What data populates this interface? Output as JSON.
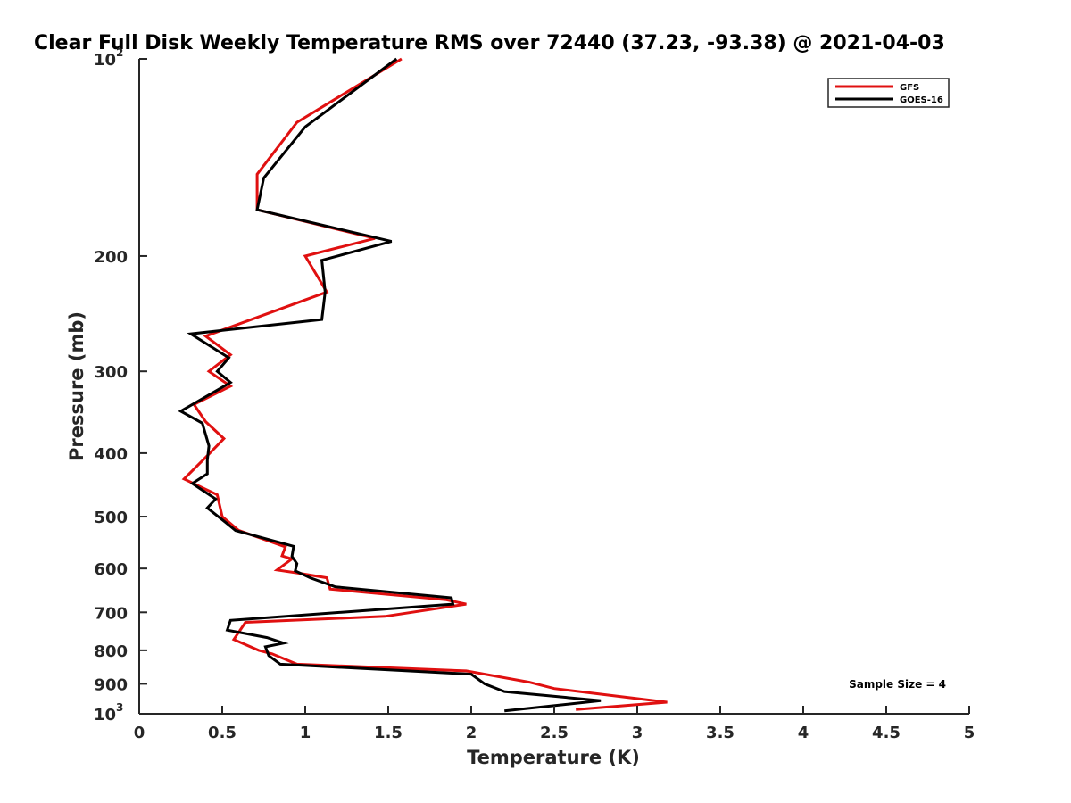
{
  "chart_data": {
    "type": "line",
    "title": "Clear Full Disk Weekly Temperature RMS over 72440 (37.23, -93.38) @ 2021-04-03",
    "xlabel": "Temperature (K)",
    "ylabel": "Pressure (mb)",
    "xlim": [
      0,
      5
    ],
    "ylim": [
      1000,
      100
    ],
    "y_scale": "log",
    "y_reversed": true,
    "x_ticks": [
      "0",
      "0.5",
      "1",
      "1.5",
      "2",
      "2.5",
      "3",
      "3.5",
      "4",
      "4.5",
      "5"
    ],
    "x_tick_values": [
      0,
      0.5,
      1,
      1.5,
      2,
      2.5,
      3,
      3.5,
      4,
      4.5,
      5
    ],
    "y_ticks": [
      {
        "value": 100,
        "base": "10",
        "exp": "2"
      },
      {
        "value": 200,
        "label": "200"
      },
      {
        "value": 300,
        "label": "300"
      },
      {
        "value": 400,
        "label": "400"
      },
      {
        "value": 500,
        "label": "500"
      },
      {
        "value": 600,
        "label": "600"
      },
      {
        "value": 700,
        "label": "700"
      },
      {
        "value": 800,
        "label": "800"
      },
      {
        "value": 900,
        "label": "900"
      },
      {
        "value": 1000,
        "base": "10",
        "exp": "3"
      }
    ],
    "grid": false,
    "legend_position": "top-right",
    "annotation": "Sample Size = 4",
    "series": [
      {
        "name": "GFS",
        "color": "#e01010",
        "points": [
          [
            1.58,
            100
          ],
          [
            0.95,
            125
          ],
          [
            0.71,
            150
          ],
          [
            0.71,
            170
          ],
          [
            1.42,
            188
          ],
          [
            1.0,
            200
          ],
          [
            1.13,
            227
          ],
          [
            0.4,
            265
          ],
          [
            0.55,
            283
          ],
          [
            0.42,
            300
          ],
          [
            0.55,
            316
          ],
          [
            0.33,
            337
          ],
          [
            0.4,
            358
          ],
          [
            0.51,
            380
          ],
          [
            0.4,
            406
          ],
          [
            0.27,
            438
          ],
          [
            0.47,
            463
          ],
          [
            0.5,
            500
          ],
          [
            0.6,
            525
          ],
          [
            0.88,
            556
          ],
          [
            0.86,
            574
          ],
          [
            0.92,
            580
          ],
          [
            0.83,
            603
          ],
          [
            0.96,
            610
          ],
          [
            1.13,
            620
          ],
          [
            1.15,
            645
          ],
          [
            1.85,
            670
          ],
          [
            1.97,
            680
          ],
          [
            1.48,
            710
          ],
          [
            0.64,
            725
          ],
          [
            0.57,
            770
          ],
          [
            0.72,
            800
          ],
          [
            0.8,
            810
          ],
          [
            0.95,
            840
          ],
          [
            1.97,
            860
          ],
          [
            2.35,
            895
          ],
          [
            2.5,
            915
          ],
          [
            2.88,
            940
          ],
          [
            3.18,
            960
          ],
          [
            2.63,
            985
          ]
        ]
      },
      {
        "name": "GOES-16",
        "color": "#000000",
        "points": [
          [
            1.55,
            100
          ],
          [
            1.0,
            127
          ],
          [
            0.75,
            152
          ],
          [
            0.71,
            170
          ],
          [
            1.52,
            190
          ],
          [
            1.1,
            203
          ],
          [
            1.12,
            227
          ],
          [
            1.1,
            250
          ],
          [
            0.31,
            263
          ],
          [
            0.54,
            286
          ],
          [
            0.47,
            300
          ],
          [
            0.55,
            312
          ],
          [
            0.25,
            345
          ],
          [
            0.38,
            360
          ],
          [
            0.42,
            390
          ],
          [
            0.41,
            410
          ],
          [
            0.41,
            430
          ],
          [
            0.32,
            445
          ],
          [
            0.46,
            470
          ],
          [
            0.41,
            485
          ],
          [
            0.52,
            510
          ],
          [
            0.58,
            525
          ],
          [
            0.93,
            555
          ],
          [
            0.92,
            575
          ],
          [
            0.95,
            590
          ],
          [
            0.94,
            605
          ],
          [
            1.03,
            620
          ],
          [
            1.18,
            640
          ],
          [
            1.88,
            665
          ],
          [
            1.89,
            680
          ],
          [
            0.55,
            720
          ],
          [
            0.53,
            745
          ],
          [
            0.77,
            765
          ],
          [
            0.87,
            780
          ],
          [
            0.76,
            790
          ],
          [
            0.78,
            815
          ],
          [
            0.85,
            840
          ],
          [
            2.0,
            870
          ],
          [
            2.08,
            900
          ],
          [
            2.2,
            925
          ],
          [
            2.78,
            955
          ],
          [
            2.2,
            990
          ]
        ]
      }
    ]
  }
}
